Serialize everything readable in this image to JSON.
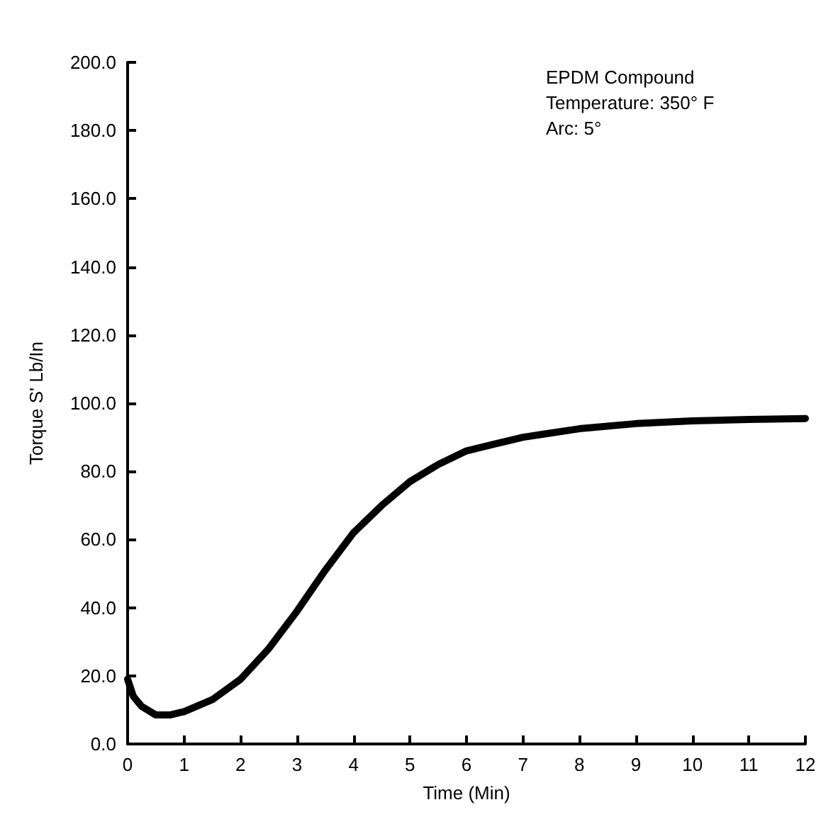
{
  "chart_data": {
    "type": "line",
    "xlabel": "Time (Min)",
    "ylabel": "Torque S' Lb/In",
    "annotations": [
      "EPDM Compound",
      "Temperature: 350° F",
      "Arc: 5°"
    ],
    "x": [
      0,
      0.1,
      0.25,
      0.5,
      0.75,
      1,
      1.5,
      2,
      2.5,
      3,
      3.5,
      4,
      4.5,
      5,
      5.5,
      6,
      6.5,
      7,
      8,
      9,
      10,
      11,
      12
    ],
    "values": [
      19,
      14,
      11,
      8.5,
      8.5,
      9.5,
      13,
      19,
      28,
      39,
      51,
      62,
      70,
      77,
      82,
      86,
      88,
      90,
      92.5,
      94,
      94.8,
      95.2,
      95.5
    ],
    "color": "#000000",
    "marker": "none",
    "line_style": "solid",
    "xlim": [
      0,
      12
    ],
    "xticks": [
      0,
      1,
      2,
      3,
      4,
      5,
      6,
      7,
      8,
      9,
      10,
      11,
      12
    ],
    "ylim": [
      0,
      200
    ],
    "yticks": [
      {
        "value": 0,
        "label": "0.0"
      },
      {
        "value": 20,
        "label": "20.0"
      },
      {
        "value": 40,
        "label": "40.0"
      },
      {
        "value": 60,
        "label": "60.0"
      },
      {
        "value": 80,
        "label": "80.0"
      },
      {
        "value": 100,
        "label": "100.0"
      },
      {
        "value": 120,
        "label": "120.0"
      },
      {
        "value": 140,
        "label": "140.0"
      },
      {
        "value": 160,
        "label": "160.0"
      },
      {
        "value": 180,
        "label": "180.0"
      },
      {
        "value": 200,
        "label": "200.0"
      }
    ]
  }
}
